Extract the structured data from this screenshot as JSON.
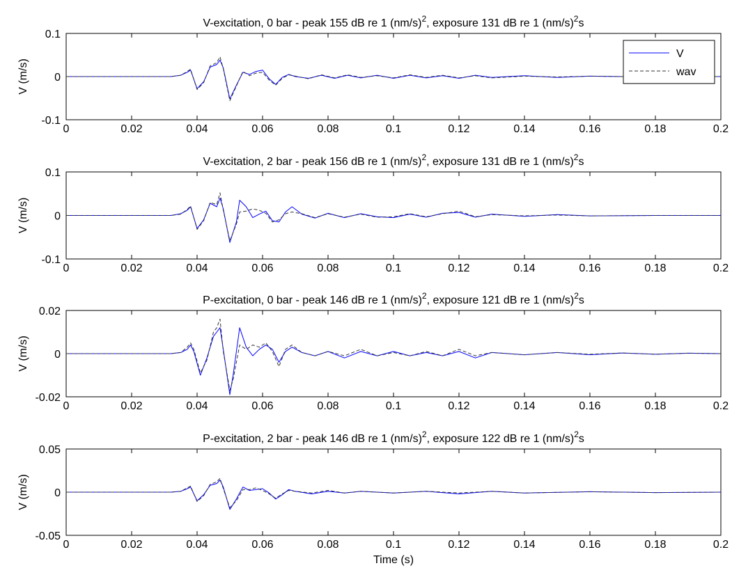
{
  "figure": {
    "xlabel": "Time (s)"
  },
  "chart_data": [
    {
      "type": "line",
      "title": "V-excitation, 0 bar - peak 155 dB re 1 (nm/s)",
      "title_tail": ", exposure 131 dB re 1 (nm/s)",
      "title_end": "s",
      "title_sup": "2",
      "xlabel": "",
      "ylabel": "V (m/s)",
      "xlim": [
        0,
        0.2
      ],
      "ylim": [
        -0.1,
        0.1
      ],
      "xticks": [
        "0",
        "0.02",
        "0.04",
        "0.06",
        "0.08",
        "0.1",
        "0.12",
        "0.14",
        "0.16",
        "0.18",
        "0.2"
      ],
      "yticks": [
        "-0.1",
        "0",
        "0.1"
      ],
      "legend": {
        "position": "top-right",
        "entries": [
          "V",
          "wav"
        ]
      },
      "series": [
        {
          "name": "V",
          "color": "#0000ff",
          "dash": "solid",
          "x": [
            0,
            0.032,
            0.035,
            0.037,
            0.038,
            0.04,
            0.042,
            0.044,
            0.046,
            0.047,
            0.048,
            0.05,
            0.052,
            0.054,
            0.056,
            0.058,
            0.06,
            0.062,
            0.064,
            0.066,
            0.068,
            0.07,
            0.074,
            0.078,
            0.082,
            0.086,
            0.09,
            0.095,
            0.1,
            0.105,
            0.11,
            0.115,
            0.12,
            0.125,
            0.13,
            0.14,
            0.15,
            0.16,
            0.17,
            0.18,
            0.2
          ],
          "y": [
            0,
            0,
            0.003,
            0.01,
            0.015,
            -0.028,
            -0.012,
            0.022,
            0.028,
            0.038,
            0.02,
            -0.052,
            -0.02,
            0.01,
            0.005,
            0.012,
            0.015,
            -0.005,
            -0.018,
            -0.002,
            0.005,
            0,
            -0.004,
            0.003,
            -0.004,
            0.003,
            -0.003,
            0.003,
            -0.004,
            0.003,
            -0.003,
            0.002,
            -0.004,
            0.003,
            -0.002,
            0.002,
            -0.002,
            0.001,
            0,
            0,
            0
          ]
        },
        {
          "name": "wav",
          "color": "#333333",
          "dash": "dashed",
          "x": [
            0,
            0.032,
            0.035,
            0.037,
            0.038,
            0.04,
            0.042,
            0.044,
            0.046,
            0.047,
            0.048,
            0.05,
            0.052,
            0.054,
            0.056,
            0.058,
            0.06,
            0.062,
            0.064,
            0.066,
            0.068,
            0.07,
            0.074,
            0.078,
            0.082,
            0.086,
            0.09,
            0.095,
            0.1,
            0.105,
            0.11,
            0.115,
            0.12,
            0.125,
            0.13,
            0.14,
            0.15,
            0.16,
            0.17,
            0.18,
            0.2
          ],
          "y": [
            0,
            0,
            0.003,
            0.012,
            0.017,
            -0.03,
            -0.014,
            0.025,
            0.032,
            0.046,
            0.018,
            -0.056,
            -0.022,
            0.012,
            0.002,
            0.008,
            0.01,
            -0.008,
            -0.02,
            -0.004,
            0.004,
            0.001,
            -0.005,
            0.004,
            -0.003,
            0.004,
            -0.002,
            0.002,
            -0.003,
            0.004,
            -0.002,
            0.003,
            -0.003,
            0.002,
            -0.003,
            0.001,
            -0.001,
            0.001,
            0,
            0,
            0
          ]
        }
      ]
    },
    {
      "type": "line",
      "title": "V-excitation, 2 bar - peak 156 dB re 1 (nm/s)",
      "title_tail": ", exposure 131 dB re 1 (nm/s)",
      "title_end": "s",
      "title_sup": "2",
      "xlabel": "",
      "ylabel": "V (m/s)",
      "xlim": [
        0,
        0.2
      ],
      "ylim": [
        -0.1,
        0.1
      ],
      "xticks": [
        "0",
        "0.02",
        "0.04",
        "0.06",
        "0.08",
        "0.1",
        "0.12",
        "0.14",
        "0.16",
        "0.18",
        "0.2"
      ],
      "yticks": [
        "-0.1",
        "0",
        "0.1"
      ],
      "series": [
        {
          "name": "V",
          "color": "#0000ff",
          "dash": "solid",
          "x": [
            0,
            0.032,
            0.035,
            0.037,
            0.038,
            0.04,
            0.042,
            0.044,
            0.046,
            0.047,
            0.048,
            0.05,
            0.052,
            0.053,
            0.055,
            0.057,
            0.059,
            0.061,
            0.063,
            0.065,
            0.067,
            0.069,
            0.072,
            0.076,
            0.08,
            0.085,
            0.09,
            0.095,
            0.1,
            0.105,
            0.11,
            0.115,
            0.12,
            0.125,
            0.13,
            0.14,
            0.15,
            0.16,
            0.18,
            0.2
          ],
          "y": [
            0,
            0,
            0.004,
            0.012,
            0.02,
            -0.03,
            -0.01,
            0.028,
            0.02,
            0.04,
            0.015,
            -0.062,
            -0.015,
            0.035,
            0.02,
            -0.005,
            0.003,
            0.01,
            -0.012,
            -0.015,
            0.008,
            0.02,
            0.003,
            -0.006,
            0.005,
            -0.005,
            0.004,
            -0.003,
            -0.005,
            0.003,
            -0.004,
            0.005,
            0.007,
            -0.004,
            0.003,
            -0.002,
            0.002,
            -0.001,
            0,
            0
          ]
        },
        {
          "name": "wav",
          "color": "#333333",
          "dash": "dashed",
          "x": [
            0,
            0.032,
            0.035,
            0.037,
            0.038,
            0.04,
            0.042,
            0.044,
            0.046,
            0.047,
            0.048,
            0.05,
            0.052,
            0.053,
            0.055,
            0.057,
            0.059,
            0.061,
            0.063,
            0.065,
            0.067,
            0.069,
            0.072,
            0.076,
            0.08,
            0.085,
            0.09,
            0.095,
            0.1,
            0.105,
            0.11,
            0.115,
            0.12,
            0.125,
            0.13,
            0.14,
            0.15,
            0.16,
            0.18,
            0.2
          ],
          "y": [
            0,
            0,
            0.003,
            0.014,
            0.022,
            -0.032,
            -0.012,
            0.03,
            0.025,
            0.052,
            0.012,
            -0.058,
            -0.02,
            0.008,
            0.01,
            0.015,
            0.012,
            0.005,
            -0.015,
            -0.01,
            0.004,
            0.008,
            0.004,
            -0.005,
            0.004,
            -0.004,
            0.003,
            -0.004,
            -0.003,
            0.004,
            -0.003,
            0.004,
            0.01,
            -0.003,
            0.002,
            -0.001,
            0.001,
            -0.001,
            0,
            0
          ]
        }
      ]
    },
    {
      "type": "line",
      "title": "P-excitation, 0 bar - peak 146 dB re 1 (nm/s)",
      "title_tail": ", exposure 121 dB re 1 (nm/s)",
      "title_end": "s",
      "title_sup": "2",
      "xlabel": "",
      "ylabel": "V (m/s)",
      "xlim": [
        0,
        0.2
      ],
      "ylim": [
        -0.02,
        0.02
      ],
      "xticks": [
        "0",
        "0.02",
        "0.04",
        "0.06",
        "0.08",
        "0.1",
        "0.12",
        "0.14",
        "0.16",
        "0.18",
        "0.2"
      ],
      "yticks": [
        "-0.02",
        "0",
        "0.02"
      ],
      "series": [
        {
          "name": "V",
          "color": "#0000ff",
          "dash": "solid",
          "x": [
            0,
            0.032,
            0.035,
            0.037,
            0.038,
            0.039,
            0.041,
            0.043,
            0.045,
            0.046,
            0.047,
            0.048,
            0.05,
            0.051,
            0.053,
            0.055,
            0.057,
            0.059,
            0.061,
            0.063,
            0.065,
            0.067,
            0.069,
            0.072,
            0.076,
            0.08,
            0.085,
            0.09,
            0.095,
            0.1,
            0.105,
            0.11,
            0.115,
            0.12,
            0.125,
            0.13,
            0.14,
            0.15,
            0.16,
            0.17,
            0.18,
            0.19,
            0.2
          ],
          "y": [
            0,
            0,
            0.0005,
            0.002,
            0.004,
            0.001,
            -0.01,
            -0.002,
            0.008,
            0.01,
            0.012,
            0.002,
            -0.019,
            -0.01,
            0.012,
            0.003,
            -0.001,
            0.002,
            0.004,
            0.002,
            -0.004,
            0.001,
            0.003,
            0.0005,
            -0.001,
            0.001,
            -0.002,
            0.001,
            -0.001,
            0.001,
            -0.001,
            0.0005,
            -0.001,
            0.001,
            -0.002,
            0.0005,
            -0.0005,
            0.0005,
            -0.0005,
            0.0003,
            -0.0003,
            0.0002,
            0
          ]
        },
        {
          "name": "wav",
          "color": "#333333",
          "dash": "dashed",
          "x": [
            0,
            0.032,
            0.035,
            0.037,
            0.038,
            0.039,
            0.041,
            0.043,
            0.045,
            0.046,
            0.047,
            0.048,
            0.05,
            0.051,
            0.053,
            0.055,
            0.057,
            0.059,
            0.061,
            0.063,
            0.065,
            0.067,
            0.069,
            0.072,
            0.076,
            0.08,
            0.085,
            0.09,
            0.095,
            0.1,
            0.105,
            0.11,
            0.115,
            0.12,
            0.125,
            0.13,
            0.14,
            0.15,
            0.16,
            0.17,
            0.18,
            0.19,
            0.2
          ],
          "y": [
            0,
            0,
            0.0005,
            0.003,
            0.005,
            0.002,
            -0.009,
            -0.003,
            0.01,
            0.012,
            0.016,
            0.001,
            -0.017,
            -0.012,
            0.004,
            0.002,
            0.004,
            0.003,
            0.005,
            0.001,
            -0.006,
            0.002,
            0.004,
            0.0005,
            -0.001,
            0.001,
            -0.001,
            0.002,
            -0.001,
            0.0005,
            -0.001,
            0.001,
            -0.001,
            0.002,
            -0.001,
            0.0005,
            -0.0005,
            0.0005,
            -0.0003,
            0.0003,
            -0.0003,
            0.0002,
            0
          ]
        }
      ]
    },
    {
      "type": "line",
      "title": "P-excitation, 2 bar - peak 146 dB re 1 (nm/s)",
      "title_tail": ", exposure 122 dB re 1 (nm/s)",
      "title_end": "s",
      "title_sup": "2",
      "xlabel": "Time (s)",
      "ylabel": "V (m/s)",
      "xlim": [
        0,
        0.2
      ],
      "ylim": [
        -0.05,
        0.05
      ],
      "xticks": [
        "0",
        "0.02",
        "0.04",
        "0.06",
        "0.08",
        "0.1",
        "0.12",
        "0.14",
        "0.16",
        "0.18",
        "0.2"
      ],
      "yticks": [
        "-0.05",
        "0",
        "0.05"
      ],
      "series": [
        {
          "name": "V",
          "color": "#0000ff",
          "dash": "solid",
          "x": [
            0,
            0.032,
            0.035,
            0.037,
            0.038,
            0.04,
            0.042,
            0.044,
            0.046,
            0.047,
            0.048,
            0.05,
            0.052,
            0.054,
            0.056,
            0.058,
            0.06,
            0.062,
            0.064,
            0.066,
            0.068,
            0.07,
            0.075,
            0.08,
            0.085,
            0.09,
            0.1,
            0.11,
            0.12,
            0.13,
            0.14,
            0.16,
            0.18,
            0.2
          ],
          "y": [
            0,
            0,
            0.001,
            0.004,
            0.006,
            -0.01,
            -0.003,
            0.008,
            0.01,
            0.014,
            0.006,
            -0.02,
            -0.008,
            0.006,
            0.002,
            0.003,
            0.004,
            -0.001,
            -0.008,
            -0.003,
            0.003,
            0.001,
            -0.002,
            0.001,
            -0.001,
            0.001,
            -0.001,
            0.001,
            -0.002,
            0.001,
            -0.001,
            0.0005,
            -0.0005,
            0
          ]
        },
        {
          "name": "wav",
          "color": "#333333",
          "dash": "dashed",
          "x": [
            0,
            0.032,
            0.035,
            0.037,
            0.038,
            0.04,
            0.042,
            0.044,
            0.046,
            0.047,
            0.048,
            0.05,
            0.052,
            0.054,
            0.056,
            0.058,
            0.06,
            0.062,
            0.064,
            0.066,
            0.068,
            0.07,
            0.075,
            0.08,
            0.085,
            0.09,
            0.1,
            0.11,
            0.12,
            0.13,
            0.14,
            0.16,
            0.18,
            0.2
          ],
          "y": [
            0,
            0,
            0.001,
            0.005,
            0.007,
            -0.011,
            -0.004,
            0.009,
            0.012,
            0.016,
            0.004,
            -0.018,
            -0.01,
            0.003,
            0.003,
            0.005,
            0.002,
            -0.002,
            -0.007,
            -0.002,
            0.002,
            0.001,
            -0.001,
            0.002,
            -0.001,
            0.001,
            -0.001,
            0.001,
            -0.001,
            0.001,
            -0.001,
            0.0005,
            -0.0005,
            0
          ]
        }
      ]
    }
  ]
}
